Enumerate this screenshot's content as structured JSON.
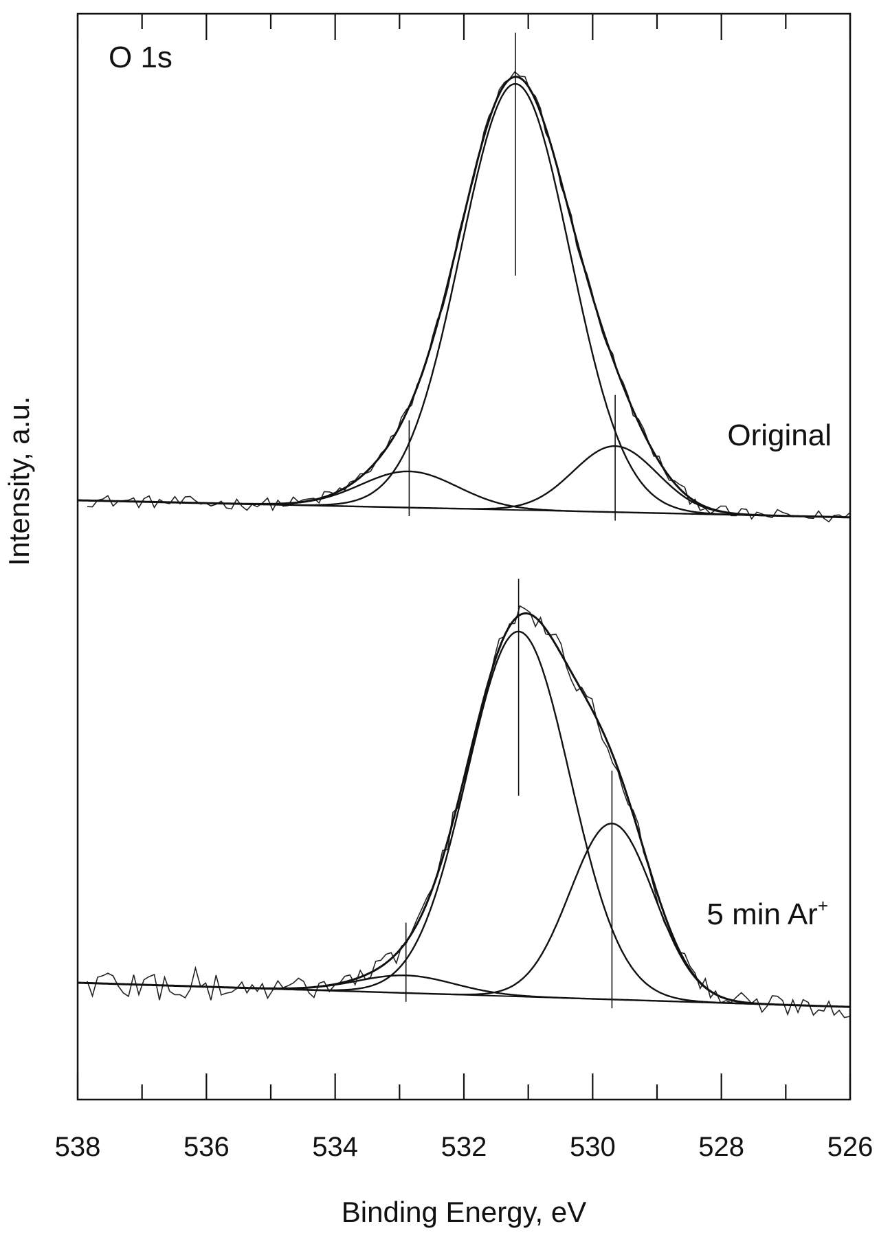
{
  "chart_data": {
    "type": "line",
    "title": "",
    "xlabel": "Binding Energy, eV",
    "ylabel": "Intensity, a.u.",
    "xlim": [
      538,
      526
    ],
    "x_reversed": true,
    "y_ticks_shown": false,
    "grid": false,
    "x_ticks": [
      538,
      536,
      534,
      532,
      530,
      528,
      526
    ],
    "annotations": {
      "core_level": "O 1s",
      "top_label": "Original",
      "bottom_label_main": "5 min Ar",
      "bottom_label_sup": "+"
    },
    "panels": [
      {
        "name": "Original",
        "baseline": {
          "start": 0.0,
          "end": -0.04
        },
        "components": [
          {
            "center": 531.2,
            "height": 1.0,
            "sigma": 0.85
          },
          {
            "center": 532.85,
            "height": 0.085,
            "sigma": 0.75
          },
          {
            "center": 529.65,
            "height": 0.155,
            "sigma": 0.65
          }
        ],
        "peak_markers": [
          531.2,
          532.85,
          529.65
        ]
      },
      {
        "name": "5 min Ar+",
        "baseline": {
          "start": 0.0,
          "end": -0.055
        },
        "components": [
          {
            "center": 531.15,
            "height": 0.83,
            "sigma": 0.8
          },
          {
            "center": 532.9,
            "height": 0.04,
            "sigma": 0.75
          },
          {
            "center": 529.7,
            "height": 0.4,
            "sigma": 0.65
          }
        ],
        "peak_markers": [
          531.15,
          532.9,
          529.7
        ]
      }
    ]
  }
}
